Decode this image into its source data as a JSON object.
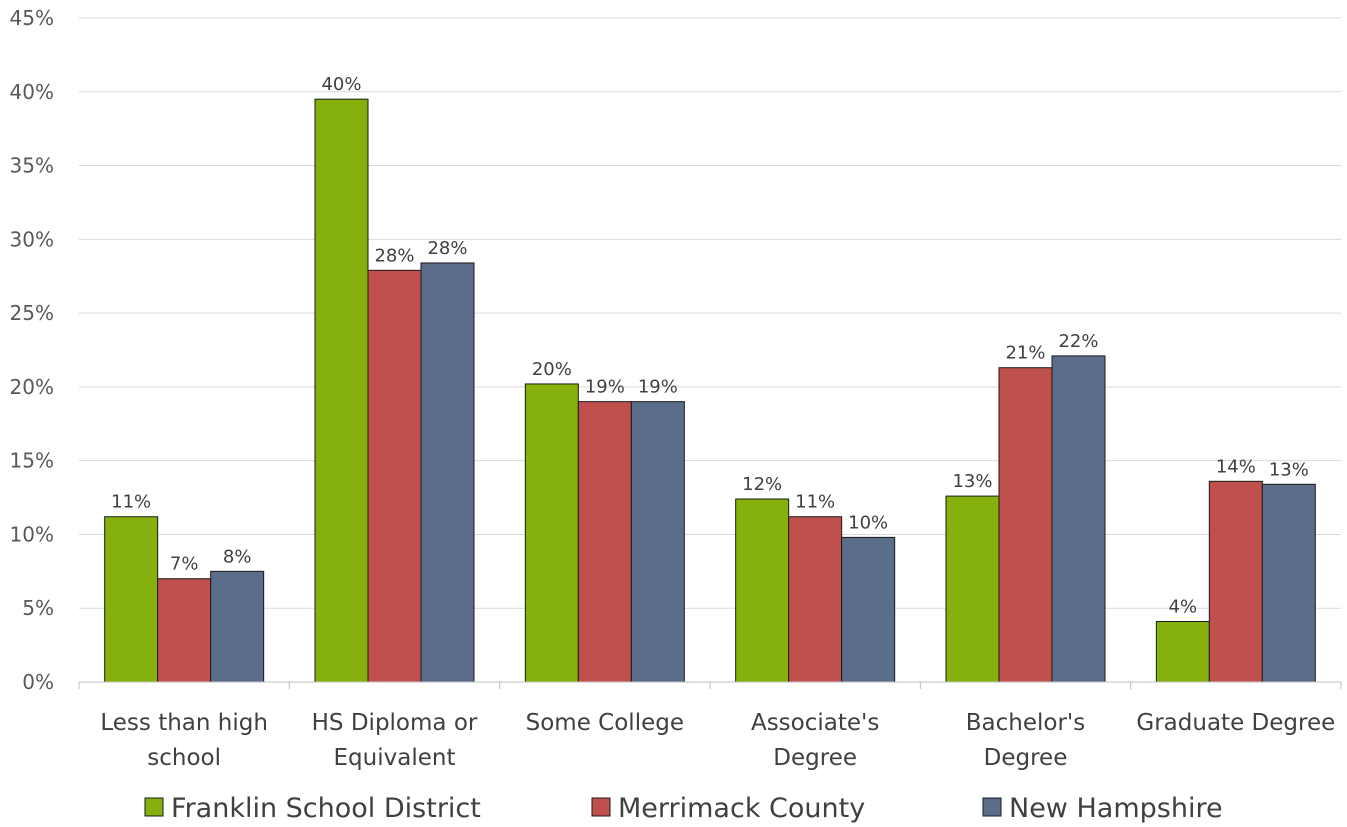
{
  "chart_data": {
    "type": "bar",
    "title": "",
    "xlabel": "",
    "ylabel": "",
    "ylim": [
      0,
      45
    ],
    "ytick_step": 5,
    "ytick_format": "percent",
    "grid": true,
    "legend_position": "bottom",
    "categories": [
      [
        "Less than high",
        "school"
      ],
      [
        "HS Diploma or",
        "Equivalent"
      ],
      [
        "Some College"
      ],
      [
        "Associate's",
        "Degree"
      ],
      [
        "Bachelor's",
        "Degree"
      ],
      [
        "Graduate Degree"
      ]
    ],
    "series": [
      {
        "name": "Franklin School District",
        "color": "#86b00b",
        "values": [
          11.2,
          39.5,
          20.2,
          12.4,
          12.6,
          4.1
        ],
        "labels": [
          "11%",
          "40%",
          "20%",
          "12%",
          "13%",
          "4%"
        ]
      },
      {
        "name": "Merrimack County",
        "color": "#c0504d",
        "values": [
          7.0,
          27.9,
          19.0,
          11.2,
          21.3,
          13.6
        ],
        "labels": [
          "7%",
          "28%",
          "19%",
          "11%",
          "21%",
          "14%"
        ]
      },
      {
        "name": "New Hampshire",
        "color": "#5a6e8c",
        "values": [
          7.5,
          28.4,
          19.0,
          9.8,
          22.1,
          13.4
        ],
        "labels": [
          "8%",
          "28%",
          "19%",
          "10%",
          "22%",
          "13%"
        ]
      }
    ]
  }
}
